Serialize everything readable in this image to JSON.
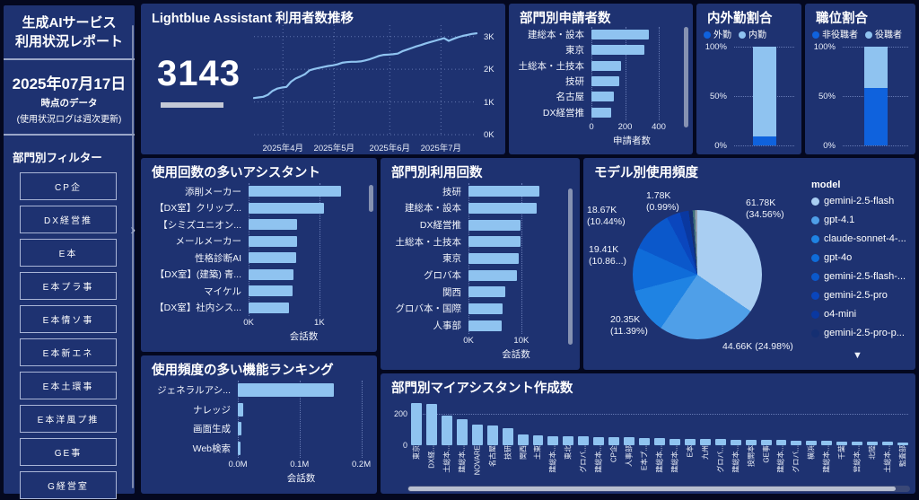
{
  "colors": {
    "page_bg": "#04081f",
    "panel_bg": "#1e3271",
    "bar_light": "#8fc3f0",
    "bar_vivid": "#0f62dd",
    "text": "#ffffff"
  },
  "sidebar": {
    "title_line1": "生成AIサービス",
    "title_line2": "利用状況レポート",
    "date": "2025年07月17日",
    "date_sub1": "時点のデータ",
    "date_sub2": "(使用状況ログは週次更新)",
    "filter_label": "部門別フィルター",
    "filters": [
      "CP企",
      "DX経営推",
      "E本",
      "E本プラ事",
      "E本情ソ事",
      "E本新エネ",
      "E本土環事",
      "E本洋風プ推",
      "GE事",
      "G経営室"
    ],
    "chevron": "›"
  },
  "chart_data": {
    "users_trend": {
      "type": "line",
      "title": "Lightblue Assistant 利用者数推移",
      "big_number": "3143",
      "ylim": [
        0,
        3.35
      ],
      "y_ticks": [
        {
          "label": "3K",
          "value": 3
        },
        {
          "label": "2K",
          "value": 2
        },
        {
          "label": "1K",
          "value": 1
        },
        {
          "label": "0K",
          "value": 0
        }
      ],
      "x_ticks": [
        {
          "label": "2025年4月",
          "f": 0.13
        },
        {
          "label": "2025年5月",
          "f": 0.36
        },
        {
          "label": "2025年6月",
          "f": 0.61
        },
        {
          "label": "2025年7月",
          "f": 0.84
        }
      ],
      "values": [
        1.12,
        1.14,
        1.16,
        1.22,
        1.34,
        1.41,
        1.44,
        1.46,
        1.62,
        1.72,
        1.78,
        1.85,
        1.97,
        2.01,
        2.04,
        2.07,
        2.1,
        2.12,
        2.15,
        2.2,
        2.22,
        2.23,
        2.23,
        2.24,
        2.27,
        2.31,
        2.36,
        2.41,
        2.44,
        2.45,
        2.46,
        2.48,
        2.55,
        2.6,
        2.65,
        2.7,
        2.74,
        2.79,
        2.83,
        2.87,
        2.91,
        2.95,
        2.87,
        2.93,
        2.98,
        3.02,
        3.05,
        3.08,
        3.1
      ]
    },
    "applicants": {
      "type": "bar",
      "title": "部門別申請者数",
      "xlabel": "申請者数",
      "xlim": 480,
      "x_ticks": [
        {
          "label": "0",
          "value": 0
        },
        {
          "label": "200",
          "value": 200
        },
        {
          "label": "400",
          "value": 400
        }
      ],
      "categories": [
        "建総本・設本",
        "東京",
        "土総本・土技本",
        "技研",
        "名古屋",
        "DX経営推"
      ],
      "values": [
        340,
        315,
        175,
        165,
        135,
        115
      ]
    },
    "inout_ratio": {
      "type": "stacked-bar",
      "title": "内外勤割合",
      "y_ticks": [
        "100%",
        "50%",
        "0%"
      ],
      "segments": [
        {
          "name": "外勤",
          "pct": 9,
          "color": "#0f62dd"
        },
        {
          "name": "内勤",
          "pct": 91,
          "color": "#8fc3f0"
        }
      ]
    },
    "position_ratio": {
      "type": "stacked-bar",
      "title": "職位割合",
      "y_ticks": [
        "100%",
        "50%",
        "0%"
      ],
      "segments": [
        {
          "name": "非役職者",
          "pct": 58,
          "color": "#0f62dd"
        },
        {
          "name": "役職者",
          "pct": 42,
          "color": "#8fc3f0"
        }
      ]
    },
    "top_assistants": {
      "type": "bar",
      "title": "使用回数の多いアシスタント",
      "xlabel": "会話数",
      "xlim": 1560,
      "x_ticks": [
        {
          "label": "0K",
          "value": 0
        },
        {
          "label": "1K",
          "value": 1000
        }
      ],
      "categories": [
        "添削メーカー",
        "【DX室】クリップ...",
        "【シミズユニオン...",
        "メールメーカー",
        "性格診断AI",
        "【DX室】(建築) 青...",
        "マイケル",
        "【DX室】社内シス..."
      ],
      "values": [
        1310,
        1070,
        680,
        680,
        670,
        640,
        620,
        570
      ]
    },
    "dept_usage": {
      "type": "bar",
      "title": "部門別利用回数",
      "xlabel": "会話数",
      "xlim": 18000,
      "x_ticks": [
        {
          "label": "0K",
          "value": 0
        },
        {
          "label": "10K",
          "value": 10000
        }
      ],
      "categories": [
        "技研",
        "建総本・設本",
        "DX経営推",
        "土総本・土技本",
        "東京",
        "グロバ本",
        "関西",
        "グロバ本・国際",
        "人事部"
      ],
      "values": [
        13400,
        12900,
        9900,
        9800,
        9500,
        9100,
        6900,
        6500,
        6200
      ]
    },
    "model_share": {
      "type": "pie",
      "title": "モデル別使用頻度",
      "legend_title": "model",
      "slices": [
        {
          "name": "gemini-2.5-flash",
          "pct": 34.56,
          "color": "#a9cef2",
          "in_legend": true,
          "callout_lines": [
            "61.78K",
            "(34.56%)"
          ]
        },
        {
          "name": "gpt-4.1",
          "pct": 24.98,
          "color": "#4f9fe8",
          "in_legend": true,
          "callout_lines": [
            "44.66K (24.98%)"
          ]
        },
        {
          "name": "claude-sonnet-4-...",
          "pct": 11.39,
          "color": "#1f83e3",
          "in_legend": true,
          "callout_lines": [
            "20.35K",
            "(11.39%)"
          ]
        },
        {
          "name": "gpt-4o",
          "pct": 10.86,
          "color": "#0f6cd9",
          "in_legend": true,
          "callout_lines": [
            "19.41K",
            "(10.86...)"
          ]
        },
        {
          "name": "gemini-2.5-flash-...",
          "pct": 10.44,
          "color": "#0b58cb",
          "in_legend": true,
          "callout_lines": [
            "18.67K",
            "(10.44%)"
          ]
        },
        {
          "name": "gemini-2.5-pro",
          "pct": 3.4,
          "color": "#0a46bd",
          "in_legend": true,
          "callout_lines": null
        },
        {
          "name": "o4-mini",
          "pct": 2.2,
          "color": "#0a38a0",
          "in_legend": true,
          "callout_lines": null
        },
        {
          "name": "gemini-2.5-pro-p...",
          "pct": 0.99,
          "color": "#152f72",
          "in_legend": true,
          "callout_lines": [
            "1.78K",
            "(0.99%)"
          ]
        },
        {
          "name": "",
          "pct": 0.6,
          "color": "#3f6f7a",
          "in_legend": false,
          "callout_lines": null
        },
        {
          "name": "",
          "pct": 0.58,
          "color": "#97a0ae",
          "in_legend": false,
          "callout_lines": null
        }
      ]
    },
    "feature_ranking": {
      "type": "bar",
      "title": "使用頻度の多い機能ランキング",
      "xlabel": "会話数",
      "xlim": 0.205,
      "x_ticks": [
        {
          "label": "0.0M",
          "value": 0
        },
        {
          "label": "0.1M",
          "value": 0.1
        },
        {
          "label": "0.2M",
          "value": 0.2
        }
      ],
      "categories": [
        "ジェネラルアシ...",
        "ナレッジ",
        "画面生成",
        "Web検索"
      ],
      "values": [
        0.155,
        0.009,
        0.006,
        0.005
      ]
    },
    "my_assistants": {
      "type": "bar",
      "title": "部門別マイアシスタント作成数",
      "ylim": 300,
      "y_ticks": [
        {
          "label": "200",
          "value": 200
        },
        {
          "label": "0",
          "value": 0
        }
      ],
      "categories": [
        "東京",
        "DX経...",
        "土総本...",
        "建総本...",
        "NOVARE",
        "名古屋",
        "技研",
        "関西",
        "土東",
        "建総本...",
        "東北",
        "グロバ...",
        "建総本...",
        "CP企",
        "人事部",
        "E本プ...",
        "建総本...",
        "建総本...",
        "E本",
        "九州",
        "グロバ...",
        "建総本...",
        "投開本",
        "GE事",
        "建総本...",
        "グロバ...",
        "横浜",
        "建総本...",
        "千葉",
        "営総本...",
        "北陸",
        "土総本...",
        "監査部"
      ],
      "values": [
        270,
        265,
        190,
        165,
        130,
        128,
        112,
        70,
        64,
        58,
        57,
        55,
        54,
        52,
        51,
        48,
        45,
        43,
        42,
        40,
        38,
        37,
        36,
        34,
        33,
        31,
        30,
        28,
        26,
        25,
        23,
        22,
        20
      ]
    }
  }
}
